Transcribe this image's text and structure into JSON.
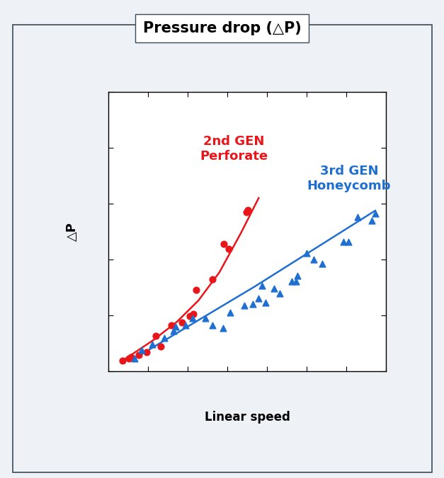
{
  "chart_data": {
    "type": "scatter",
    "title": "Pressure drop (△P)",
    "x_label": "Linear speed",
    "y_label": "△P",
    "xlim": [
      0,
      7
    ],
    "xticks": [
      0,
      1,
      2,
      3,
      4,
      5,
      6,
      7
    ],
    "ylim": [
      0,
      10
    ],
    "yticks": [
      0,
      2,
      4,
      6,
      8,
      10
    ],
    "tick_labels": false,
    "grid": false,
    "series": [
      {
        "name": "2nd GEN\nPerforate",
        "color": "#e8161b",
        "marker": "o",
        "x": [
          0.36,
          0.52,
          0.57,
          0.77,
          0.96,
          1.2,
          1.32,
          1.59,
          1.86,
          2.05,
          2.14,
          2.21,
          2.63,
          2.91,
          3.04,
          3.48,
          3.52
        ],
        "values": [
          0.38,
          0.46,
          0.51,
          0.58,
          0.68,
          1.27,
          0.89,
          1.65,
          1.75,
          1.97,
          2.05,
          2.91,
          3.29,
          4.56,
          4.38,
          5.7,
          5.77
        ],
        "fit": {
          "x": [
            0.36,
            1.11,
            1.73,
            2.27,
            2.8,
            3.34,
            3.79
          ],
          "values": [
            0.38,
            1.09,
            1.77,
            2.53,
            3.54,
            4.94,
            6.2
          ]
        }
      },
      {
        "name": "3rd GEN\nHoneycomb",
        "color": "#1f6fd1",
        "marker": "^",
        "x": [
          0.66,
          0.84,
          1.11,
          1.41,
          1.64,
          1.7,
          1.95,
          2.13,
          2.45,
          2.63,
          2.89,
          3.07,
          3.43,
          3.64,
          3.79,
          3.88,
          3.96,
          4.18,
          4.32,
          4.63,
          4.73,
          4.77,
          5.0,
          5.18,
          5.39,
          5.93,
          6.05,
          6.29,
          6.64,
          6.73
        ],
        "values": [
          0.46,
          0.76,
          0.96,
          1.19,
          1.44,
          1.59,
          1.65,
          1.9,
          1.9,
          1.65,
          1.54,
          2.1,
          2.35,
          2.41,
          2.61,
          3.06,
          2.46,
          2.96,
          2.78,
          3.22,
          3.22,
          3.42,
          4.23,
          4.0,
          3.85,
          4.63,
          4.63,
          5.52,
          5.39,
          5.65
        ],
        "fit": {
          "x": [
            0.66,
            3.7,
            6.73
          ],
          "values": [
            0.46,
            3.04,
            5.75
          ]
        }
      }
    ]
  }
}
